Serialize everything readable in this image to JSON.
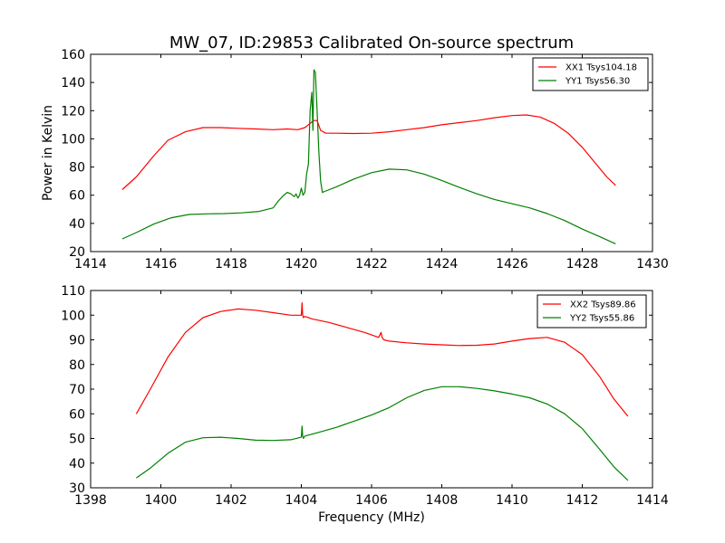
{
  "figure": {
    "title": "MW_07, ID:29853 Calibrated On-source spectrum",
    "colors": {
      "xx": "#ff0000",
      "yy": "#008000",
      "axes": "#000000",
      "background": "#ffffff"
    }
  },
  "chart_data": [
    {
      "type": "line",
      "title": "MW_07, ID:29853 Calibrated On-source spectrum",
      "xlabel": "",
      "ylabel": "Power in Kelvin",
      "xlim": [
        1414,
        1430
      ],
      "ylim": [
        20,
        160
      ],
      "xticks": [
        1414,
        1416,
        1418,
        1420,
        1422,
        1424,
        1426,
        1428,
        1430
      ],
      "yticks": [
        20,
        40,
        60,
        80,
        100,
        120,
        140,
        160
      ],
      "legend_position": "top-right",
      "grid": false,
      "series": [
        {
          "name": "XX1 Tsys104.18",
          "color": "#ff0000",
          "x": [
            1414.9,
            1415.3,
            1415.8,
            1416.2,
            1416.7,
            1417.2,
            1417.7,
            1418.2,
            1418.7,
            1419.2,
            1419.6,
            1419.9,
            1420.1,
            1420.25,
            1420.35,
            1420.45,
            1420.55,
            1420.7,
            1421.0,
            1421.5,
            1422.0,
            1422.5,
            1423.0,
            1423.5,
            1424.0,
            1424.5,
            1425.0,
            1425.5,
            1426.0,
            1426.4,
            1426.8,
            1427.2,
            1427.6,
            1428.0,
            1428.4,
            1428.7,
            1428.95
          ],
          "y": [
            64,
            73,
            88,
            99,
            105,
            108,
            108,
            107.5,
            107,
            106.5,
            107,
            106.5,
            108,
            111,
            113,
            113,
            106,
            104,
            104,
            103.8,
            104,
            105,
            106.5,
            108,
            110,
            111.5,
            113,
            115,
            116.5,
            117,
            115.5,
            111,
            104,
            94,
            82,
            73,
            67
          ]
        },
        {
          "name": "YY1 Tsys56.30",
          "color": "#008000",
          "x": [
            1414.9,
            1415.3,
            1415.8,
            1416.3,
            1416.8,
            1417.3,
            1417.8,
            1418.3,
            1418.8,
            1419.2,
            1419.35,
            1419.5,
            1419.6,
            1419.7,
            1419.8,
            1419.85,
            1419.9,
            1419.95,
            1420.0,
            1420.05,
            1420.1,
            1420.15,
            1420.2,
            1420.25,
            1420.3,
            1420.33,
            1420.36,
            1420.4,
            1420.45,
            1420.5,
            1420.55,
            1420.6,
            1420.7,
            1421.0,
            1421.5,
            1422.0,
            1422.5,
            1423.0,
            1423.5,
            1424.0,
            1424.5,
            1425.0,
            1425.5,
            1426.0,
            1426.5,
            1427.0,
            1427.5,
            1428.0,
            1428.5,
            1428.95
          ],
          "y": [
            29,
            33.5,
            39.5,
            44,
            46.3,
            46.8,
            47,
            47.5,
            48.5,
            51,
            56,
            60,
            62,
            61,
            59,
            61,
            58,
            60,
            65,
            60,
            62,
            75,
            82,
            120,
            133,
            106,
            149,
            147,
            120,
            90,
            70,
            62,
            63,
            66,
            71.5,
            76,
            78.5,
            78,
            75,
            70.5,
            65.5,
            61,
            57,
            54,
            51,
            47,
            42,
            36,
            30.5,
            25.5
          ]
        }
      ]
    },
    {
      "type": "line",
      "title": "",
      "xlabel": "Frequency (MHz)",
      "ylabel": "",
      "xlim": [
        1398,
        1414
      ],
      "ylim": [
        30,
        110
      ],
      "xticks": [
        1398,
        1400,
        1402,
        1404,
        1406,
        1408,
        1410,
        1412,
        1414
      ],
      "yticks": [
        30,
        40,
        50,
        60,
        70,
        80,
        90,
        100,
        110
      ],
      "legend_position": "top-right",
      "grid": false,
      "series": [
        {
          "name": "XX2 Tsys89.86",
          "color": "#ff0000",
          "x": [
            1399.3,
            1399.7,
            1400.2,
            1400.7,
            1401.2,
            1401.7,
            1402.2,
            1402.7,
            1403.2,
            1403.7,
            1404.0,
            1404.02,
            1404.04,
            1404.06,
            1404.1,
            1404.3,
            1404.8,
            1405.3,
            1405.8,
            1406.2,
            1406.27,
            1406.3,
            1406.35,
            1406.5,
            1407.0,
            1407.5,
            1408.0,
            1408.5,
            1409.0,
            1409.5,
            1410.0,
            1410.5,
            1411.0,
            1411.5,
            1412.0,
            1412.5,
            1412.9,
            1413.3
          ],
          "y": [
            60,
            70,
            83,
            93,
            99,
            101.5,
            102.5,
            102,
            101,
            100,
            100,
            105,
            100,
            99,
            99.5,
            98.5,
            97,
            95,
            93,
            91,
            93,
            91,
            90,
            89.5,
            88.8,
            88.3,
            88,
            87.7,
            87.8,
            88.3,
            89.5,
            90.5,
            91,
            89,
            84,
            75,
            66,
            59
          ]
        },
        {
          "name": "YY2 Tsys55.86",
          "color": "#008000",
          "x": [
            1399.3,
            1399.7,
            1400.2,
            1400.7,
            1401.2,
            1401.7,
            1402.2,
            1402.7,
            1403.2,
            1403.7,
            1404.0,
            1404.02,
            1404.04,
            1404.06,
            1404.1,
            1404.5,
            1405.0,
            1405.5,
            1406.0,
            1406.5,
            1407.0,
            1407.5,
            1408.0,
            1408.5,
            1409.0,
            1409.5,
            1410.0,
            1410.5,
            1411.0,
            1411.5,
            1412.0,
            1412.5,
            1412.9,
            1413.3
          ],
          "y": [
            34,
            38,
            44,
            48.5,
            50.3,
            50.5,
            50,
            49.3,
            49.2,
            49.5,
            50.5,
            55,
            51,
            50,
            51,
            52.5,
            54.5,
            57,
            59.5,
            62.5,
            66.5,
            69.5,
            71,
            71,
            70.3,
            69.3,
            68,
            66.5,
            64,
            60,
            54,
            45.5,
            38.5,
            33
          ]
        }
      ]
    }
  ]
}
